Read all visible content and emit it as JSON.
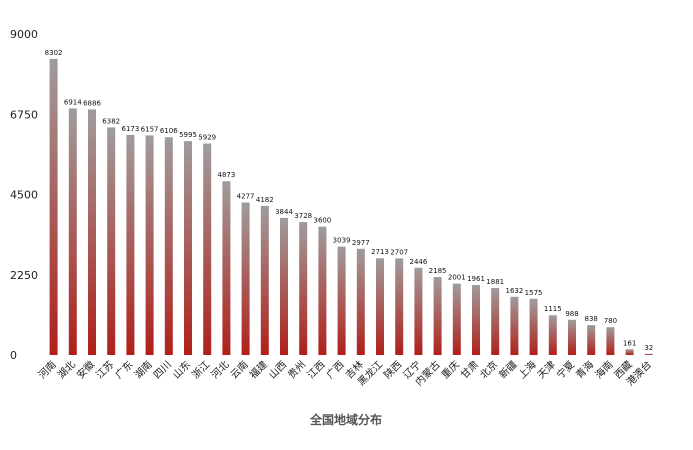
{
  "chart_data": {
    "type": "bar",
    "title": "",
    "xlabel": "全国地域分布",
    "ylabel": "",
    "ylim": [
      0,
      9000
    ],
    "yticks": [
      0,
      2250,
      4500,
      6750,
      9000
    ],
    "grid": false,
    "legend": "none",
    "bar_gradient": {
      "top": "#a09c9c",
      "bottom": "#b0201a"
    },
    "categories": [
      "河南",
      "湖北",
      "安徽",
      "江苏",
      "广东",
      "湖南",
      "四川",
      "山东",
      "浙江",
      "河北",
      "云南",
      "福建",
      "山西",
      "贵州",
      "江西",
      "广西",
      "吉林",
      "黑龙江",
      "陕西",
      "辽宁",
      "内蒙古",
      "重庆",
      "甘肃",
      "北京",
      "新疆",
      "上海",
      "天津",
      "宁夏",
      "青海",
      "海南",
      "西藏",
      "港澳台"
    ],
    "values": [
      8302,
      6914,
      6886,
      6382,
      6173,
      6157,
      6106,
      5995,
      5929,
      4873,
      4277,
      4182,
      3844,
      3728,
      3600,
      3039,
      2977,
      2713,
      2707,
      2446,
      2185,
      2001,
      1961,
      1881,
      1632,
      1575,
      1115,
      988,
      838,
      780,
      161,
      32
    ]
  }
}
